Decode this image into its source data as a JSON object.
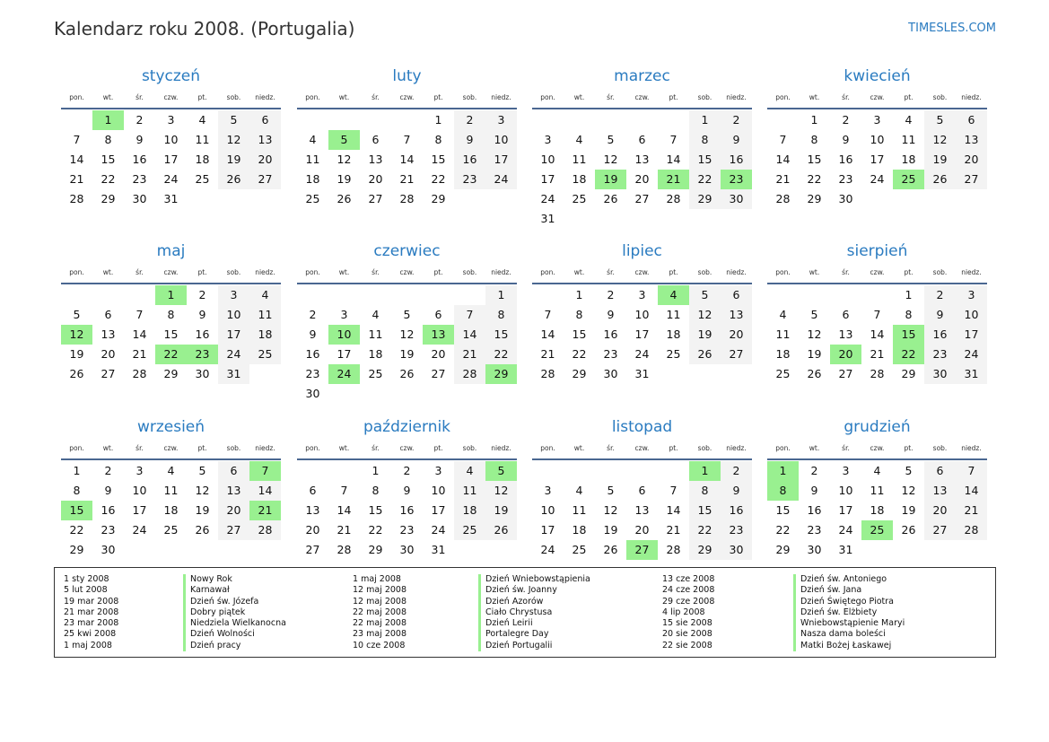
{
  "header": {
    "title": "Kalendarz roku 2008. (Portugalia)",
    "brand": "TIMESLES.COM"
  },
  "weekdays": [
    "pon.",
    "wt.",
    "śr.",
    "czw.",
    "pt.",
    "sob.",
    "niedz."
  ],
  "colors": {
    "accent": "#2a7bc0",
    "holiday": "#99f090",
    "weekend": "#f3f3f3",
    "rule": "#4a6791"
  },
  "months": [
    {
      "name": "styczeń",
      "first_weekday": "wt.",
      "days": 31,
      "holidays": [
        1
      ]
    },
    {
      "name": "luty",
      "first_weekday": "pt.",
      "days": 29,
      "holidays": [
        5
      ]
    },
    {
      "name": "marzec",
      "first_weekday": "sob.",
      "days": 31,
      "holidays": [
        19,
        21,
        23
      ]
    },
    {
      "name": "kwiecień",
      "first_weekday": "wt.",
      "days": 30,
      "holidays": [
        25
      ]
    },
    {
      "name": "maj",
      "first_weekday": "czw.",
      "days": 31,
      "holidays": [
        1,
        12,
        22,
        23
      ]
    },
    {
      "name": "czerwiec",
      "first_weekday": "niedz.",
      "days": 30,
      "holidays": [
        10,
        13,
        24,
        29
      ]
    },
    {
      "name": "lipiec",
      "first_weekday": "wt.",
      "days": 31,
      "holidays": [
        4
      ]
    },
    {
      "name": "sierpień",
      "first_weekday": "pt.",
      "days": 31,
      "holidays": [
        15,
        20,
        22
      ]
    },
    {
      "name": "wrzesień",
      "first_weekday": "pon.",
      "days": 30,
      "holidays": [
        7,
        15,
        21
      ]
    },
    {
      "name": "październik",
      "first_weekday": "śr.",
      "days": 31,
      "holidays": [
        5
      ]
    },
    {
      "name": "listopad",
      "first_weekday": "sob.",
      "days": 30,
      "holidays": [
        1,
        27
      ]
    },
    {
      "name": "grudzień",
      "first_weekday": "pon.",
      "days": 31,
      "holidays": [
        1,
        8,
        25
      ]
    }
  ],
  "holiday_list": [
    {
      "date": "1 sty 2008",
      "name": "Nowy Rok"
    },
    {
      "date": "5 lut 2008",
      "name": "Karnawał"
    },
    {
      "date": "19 mar 2008",
      "name": "Dzień św. Józefa"
    },
    {
      "date": "21 mar 2008",
      "name": "Dobry piątek"
    },
    {
      "date": "23 mar 2008",
      "name": "Niedziela Wielkanocna"
    },
    {
      "date": "25 kwi 2008",
      "name": "Dzień Wolności"
    },
    {
      "date": "1 maj 2008",
      "name": "Dzień pracy"
    },
    {
      "date": "1 maj 2008",
      "name": "Dzień Wniebowstąpienia"
    },
    {
      "date": "12 maj 2008",
      "name": "Dzień św. Joanny"
    },
    {
      "date": "12 maj 2008",
      "name": "Dzień Azorów"
    },
    {
      "date": "22 maj 2008",
      "name": "Ciało Chrystusa"
    },
    {
      "date": "22 maj 2008",
      "name": "Dzień Leirii"
    },
    {
      "date": "23 maj 2008",
      "name": "Portalegre Day"
    },
    {
      "date": "10 cze 2008",
      "name": "Dzień Portugalii"
    },
    {
      "date": "13 cze 2008",
      "name": "Dzień św. Antoniego"
    },
    {
      "date": "24 cze 2008",
      "name": "Dzień św. Jana"
    },
    {
      "date": "29 cze 2008",
      "name": "Dzień Świętego Piotra"
    },
    {
      "date": "4 lip 2008",
      "name": "Dzień św. Elżbiety"
    },
    {
      "date": "15 sie 2008",
      "name": "Wniebowstąpienie Maryi"
    },
    {
      "date": "20 sie 2008",
      "name": "Nasza dama boleści"
    },
    {
      "date": "22 sie 2008",
      "name": "Matki Bożej Łaskawej"
    }
  ]
}
